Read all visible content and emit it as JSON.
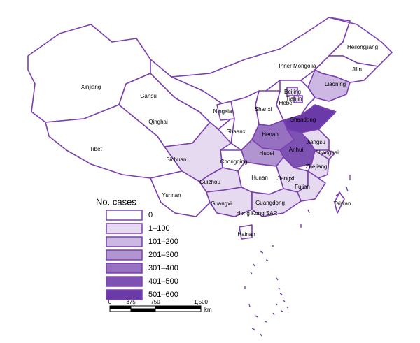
{
  "regions": [
    {
      "name": "Xinjiang",
      "color": "#ffffff"
    },
    {
      "name": "Tibet",
      "color": "#ffffff"
    },
    {
      "name": "Qinghai",
      "color": "#ffffff"
    },
    {
      "name": "Gansu",
      "color": "#ffffff"
    },
    {
      "name": "Inner Mongolia",
      "color": "#ffffff"
    },
    {
      "name": "Heilongjiang",
      "color": "#ffffff"
    },
    {
      "name": "Jilin",
      "color": "#ffffff"
    },
    {
      "name": "Liaoning",
      "color": "#cdb8e3"
    },
    {
      "name": "Hebei",
      "color": "#ffffff"
    },
    {
      "name": "Beijing",
      "color": "#e6daf0"
    },
    {
      "name": "Tianjin",
      "color": "#e6daf0"
    },
    {
      "name": "Shanxi",
      "color": "#ffffff"
    },
    {
      "name": "Ningxia",
      "color": "#ffffff"
    },
    {
      "name": "Shaanxi",
      "color": "#ffffff"
    },
    {
      "name": "Shandong",
      "color": "#6a3aa8"
    },
    {
      "name": "Henan",
      "color": "#9671c2"
    },
    {
      "name": "Jiangsu",
      "color": "#e6daf0"
    },
    {
      "name": "Anhui",
      "color": "#7d52b3"
    },
    {
      "name": "Shanghai",
      "color": "#e6daf0"
    },
    {
      "name": "Hubei",
      "color": "#b195d1"
    },
    {
      "name": "Chongqing",
      "color": "#ffffff"
    },
    {
      "name": "Sichuan",
      "color": "#e6daf0"
    },
    {
      "name": "Zhejiang",
      "color": "#e6daf0"
    },
    {
      "name": "Jiangxi",
      "color": "#e6daf0"
    },
    {
      "name": "Hunan",
      "color": "#ffffff"
    },
    {
      "name": "Fujian",
      "color": "#e6daf0"
    },
    {
      "name": "Guizhou",
      "color": "#e6daf0"
    },
    {
      "name": "Yunnan",
      "color": "#ffffff"
    },
    {
      "name": "Guangxi",
      "color": "#e6daf0"
    },
    {
      "name": "Guangdong",
      "color": "#e6daf0"
    },
    {
      "name": "Hainan",
      "color": "#ffffff"
    },
    {
      "name": "Taiwan",
      "color": "#ffffff"
    },
    {
      "name": "Hong Kong SAR",
      "color": "#ffffff"
    }
  ],
  "legend": {
    "title": "No. cases",
    "items": [
      {
        "label": "0",
        "color": "#ffffff"
      },
      {
        "label": "1–100",
        "color": "#e6daf0"
      },
      {
        "label": "101–200",
        "color": "#cdb8e3"
      },
      {
        "label": "201–300",
        "color": "#b195d1"
      },
      {
        "label": "301–400",
        "color": "#9671c2"
      },
      {
        "label": "401–500",
        "color": "#7d52b3"
      },
      {
        "label": "501–600",
        "color": "#6a3aa8"
      }
    ]
  },
  "scale_bar": {
    "labels": [
      "0",
      "375",
      "750",
      "1,500"
    ],
    "unit": "km"
  }
}
